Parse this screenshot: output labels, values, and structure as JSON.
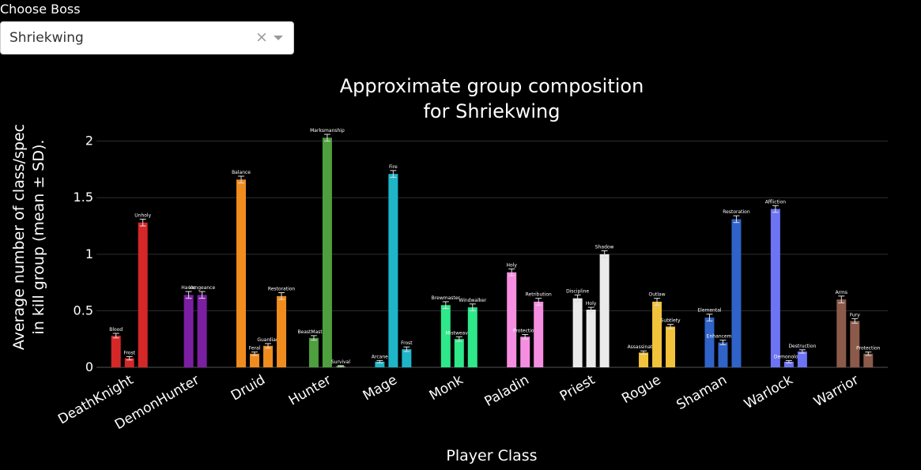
{
  "control": {
    "label": "Choose Boss",
    "selected": "Shriekwing",
    "clear_glyph": "×"
  },
  "colors": {
    "DeathKnight": "#d62728",
    "DemonHunter": "#7b1fa2",
    "Druid": "#f08c1e",
    "Hunter": "#4e9f3d",
    "Mage": "#1fb5c9",
    "Monk": "#2ee88a",
    "Paladin": "#f58ee0",
    "Priest": "#eaeaea",
    "Rogue": "#f2c23a",
    "Shaman": "#2f63c9",
    "Warlock": "#6c74f4",
    "Warrior": "#8b5a4a"
  },
  "chart_data": {
    "type": "bar",
    "title": [
      "Approximate group composition",
      "for Shriekwing"
    ],
    "xlabel": "Player Class",
    "ylabel": [
      "Average number of class/spec",
      "in kill group (mean ± SD)."
    ],
    "ylim": [
      0,
      2.2
    ],
    "yticks": [
      {
        "v": 0,
        "label": "0"
      },
      {
        "v": 0.5,
        "label": "0.5"
      },
      {
        "v": 1,
        "label": "1"
      },
      {
        "v": 1.5,
        "label": "1.5"
      },
      {
        "v": 2,
        "label": "2"
      }
    ],
    "grid": true,
    "categories": [
      "DeathKnight",
      "DemonHunter",
      "Druid",
      "Hunter",
      "Mage",
      "Monk",
      "Paladin",
      "Priest",
      "Rogue",
      "Shaman",
      "Warlock",
      "Warrior"
    ],
    "groups": [
      {
        "class": "DeathKnight",
        "bars": [
          {
            "spec": "Blood",
            "value": 0.28,
            "sd": 0.02
          },
          {
            "spec": "Frost",
            "value": 0.08,
            "sd": 0.015
          },
          {
            "spec": "Unholy",
            "value": 1.28,
            "sd": 0.03
          }
        ]
      },
      {
        "class": "DemonHunter",
        "bars": [
          {
            "spec": "Havoc",
            "value": 0.64,
            "sd": 0.03
          },
          {
            "spec": "Vengeance",
            "value": 0.64,
            "sd": 0.03
          }
        ]
      },
      {
        "class": "Druid",
        "bars": [
          {
            "spec": "Balance",
            "value": 1.66,
            "sd": 0.03
          },
          {
            "spec": "Feral",
            "value": 0.12,
            "sd": 0.015
          },
          {
            "spec": "Guardian",
            "value": 0.19,
            "sd": 0.02
          },
          {
            "spec": "Restoration",
            "value": 0.63,
            "sd": 0.03
          }
        ]
      },
      {
        "class": "Hunter",
        "bars": [
          {
            "spec": "BeastMastery",
            "value": 0.26,
            "sd": 0.02
          },
          {
            "spec": "Marksmanship",
            "value": 2.03,
            "sd": 0.03
          },
          {
            "spec": "Survival",
            "value": 0.01,
            "sd": 0.005
          }
        ]
      },
      {
        "class": "Mage",
        "bars": [
          {
            "spec": "Arcane",
            "value": 0.05,
            "sd": 0.01
          },
          {
            "spec": "Fire",
            "value": 1.71,
            "sd": 0.03
          },
          {
            "spec": "Frost",
            "value": 0.16,
            "sd": 0.02
          }
        ]
      },
      {
        "class": "Monk",
        "bars": [
          {
            "spec": "Brewmaster",
            "value": 0.55,
            "sd": 0.03
          },
          {
            "spec": "Mistweaver",
            "value": 0.25,
            "sd": 0.02
          },
          {
            "spec": "Windwalker",
            "value": 0.53,
            "sd": 0.03
          }
        ]
      },
      {
        "class": "Paladin",
        "bars": [
          {
            "spec": "Holy",
            "value": 0.84,
            "sd": 0.03
          },
          {
            "spec": "Protection",
            "value": 0.27,
            "sd": 0.02
          },
          {
            "spec": "Retribution",
            "value": 0.58,
            "sd": 0.03
          }
        ]
      },
      {
        "class": "Priest",
        "bars": [
          {
            "spec": "Discipline",
            "value": 0.61,
            "sd": 0.03
          },
          {
            "spec": "Holy",
            "value": 0.51,
            "sd": 0.02
          },
          {
            "spec": "Shadow",
            "value": 1.0,
            "sd": 0.03
          }
        ]
      },
      {
        "class": "Rogue",
        "bars": [
          {
            "spec": "Assassination",
            "value": 0.13,
            "sd": 0.015
          },
          {
            "spec": "Outlaw",
            "value": 0.58,
            "sd": 0.03
          },
          {
            "spec": "Subtlety",
            "value": 0.36,
            "sd": 0.02
          }
        ]
      },
      {
        "class": "Shaman",
        "bars": [
          {
            "spec": "Elemental",
            "value": 0.44,
            "sd": 0.03
          },
          {
            "spec": "Enhancement",
            "value": 0.22,
            "sd": 0.02
          },
          {
            "spec": "Restoration",
            "value": 1.31,
            "sd": 0.03
          }
        ]
      },
      {
        "class": "Warlock",
        "bars": [
          {
            "spec": "Affliction",
            "value": 1.4,
            "sd": 0.03
          },
          {
            "spec": "Demonology",
            "value": 0.05,
            "sd": 0.01
          },
          {
            "spec": "Destruction",
            "value": 0.14,
            "sd": 0.015
          }
        ]
      },
      {
        "class": "Warrior",
        "bars": [
          {
            "spec": "Arms",
            "value": 0.6,
            "sd": 0.03
          },
          {
            "spec": "Fury",
            "value": 0.41,
            "sd": 0.02
          },
          {
            "spec": "Protection",
            "value": 0.12,
            "sd": 0.015
          }
        ]
      }
    ]
  }
}
